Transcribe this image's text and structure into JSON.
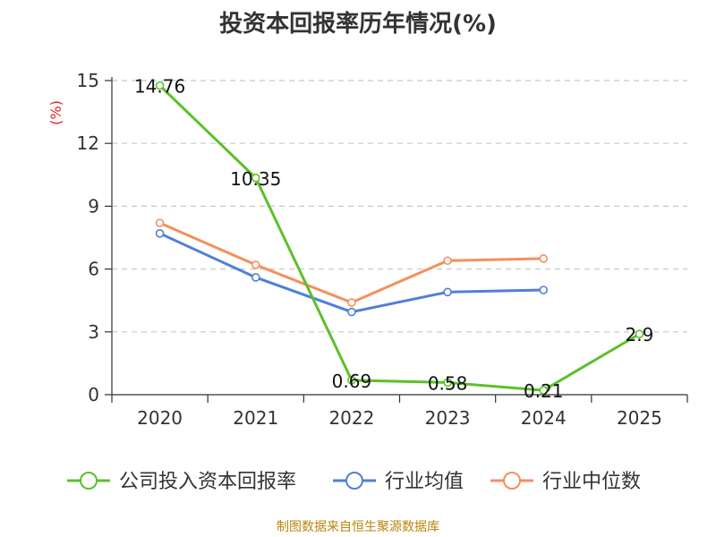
{
  "chart_data": {
    "type": "line",
    "title": "投资本回报率历年情况(%)",
    "ylabel": "(%)",
    "xlabel": "",
    "categories": [
      "2020",
      "2021",
      "2022",
      "2023",
      "2024",
      "2025"
    ],
    "ylim": [
      0,
      15
    ],
    "yticks": [
      0,
      3,
      6,
      9,
      12,
      15
    ],
    "grid": true,
    "legend_position": "bottom",
    "series": [
      {
        "name": "公司投入资本回报率",
        "color": "#5cc02a",
        "values": [
          14.76,
          10.35,
          0.69,
          0.58,
          0.21,
          2.9
        ],
        "labels": [
          "14.76",
          "10.35",
          "0.69",
          "0.58",
          "0.21",
          "2.9"
        ]
      },
      {
        "name": "行业均值",
        "color": "#4f7fd9",
        "values": [
          7.7,
          5.6,
          3.95,
          4.9,
          5.0,
          null
        ]
      },
      {
        "name": "行业中位数",
        "color": "#f4905c",
        "values": [
          8.2,
          6.2,
          4.4,
          6.4,
          6.5,
          null
        ]
      }
    ]
  },
  "source": "制图数据来自恒生聚源数据库"
}
